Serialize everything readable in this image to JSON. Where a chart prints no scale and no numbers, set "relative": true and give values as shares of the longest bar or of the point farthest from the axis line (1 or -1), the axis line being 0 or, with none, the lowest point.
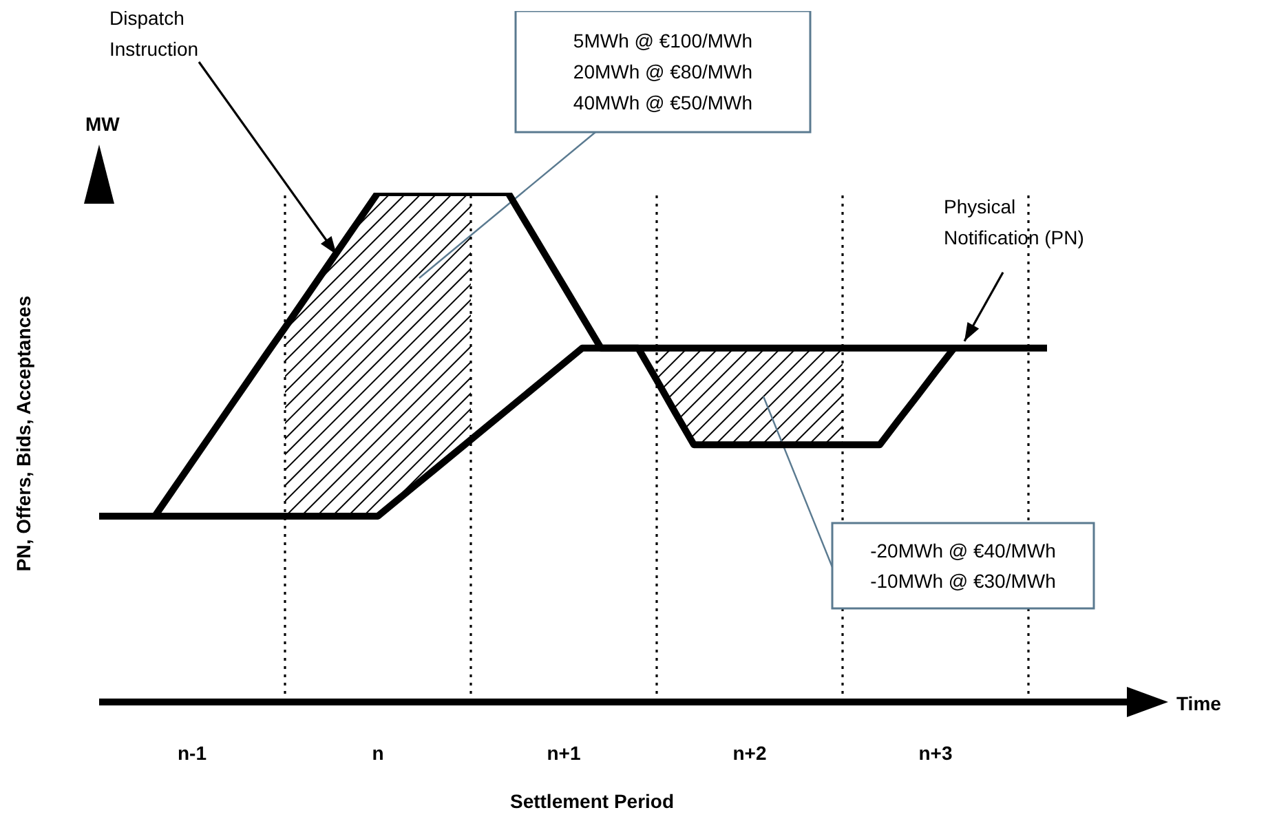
{
  "chart_data": {
    "type": "line",
    "relative": true,
    "xlabel": "Settlement Period",
    "ylabel": "PN, Offers, Bids, Acceptances",
    "categories": [
      null,
      null,
      null,
      null,
      null,
      "n-1",
      null,
      null,
      null,
      null,
      null,
      null,
      null,
      null,
      null,
      "n",
      null,
      null,
      null,
      null,
      null,
      null,
      null,
      null,
      null,
      "n+1",
      null,
      null,
      null,
      null,
      null,
      null,
      null,
      null,
      null,
      "n+2",
      null,
      null,
      null,
      null,
      null,
      null,
      null,
      null,
      null,
      "n+3",
      null,
      null,
      null,
      null,
      null,
      null
    ],
    "series": [
      {
        "name": "Physical Notification (PN)",
        "color": "#000000",
        "values": [
          0.365,
          0.365,
          0.365,
          0.365,
          0.365,
          0.365,
          0.365,
          0.365,
          0.365,
          0.365,
          0.365,
          0.365,
          0.365,
          0.365,
          0.365,
          0.365,
          0.395,
          0.425,
          0.455,
          0.485,
          0.515,
          0.545,
          0.575,
          0.605,
          0.635,
          0.665,
          0.695,
          0.695,
          0.695,
          0.695,
          0.695,
          0.695,
          0.695,
          0.695,
          0.695,
          0.695,
          0.695,
          0.695,
          0.695,
          0.695,
          0.695,
          0.695,
          0.695,
          0.695,
          0.695,
          0.695,
          0.695,
          0.695,
          0.695,
          0.695,
          0.695,
          0.695
        ]
      },
      {
        "name": "Dispatch Instruction",
        "color": "#000000",
        "values": [
          null,
          null,
          null,
          0.365,
          0.418,
          0.471,
          0.524,
          0.577,
          0.63,
          0.683,
          0.735,
          0.788,
          0.841,
          0.894,
          0.947,
          1,
          1,
          1,
          1,
          1,
          1,
          1,
          1,
          0.939,
          0.878,
          0.817,
          0.756,
          0.695,
          0.695,
          0.695,
          0.632,
          0.568,
          0.505,
          0.505,
          0.505,
          0.505,
          0.505,
          0.505,
          0.505,
          0.505,
          0.505,
          0.505,
          0.505,
          0.553,
          0.6,
          0.648,
          0.695,
          null,
          null,
          null,
          null,
          null
        ]
      }
    ],
    "grid": "x",
    "annotations": [
      "MW",
      "Time",
      "5MWh @ €100/MWh\n20MWh @ €80/MWh\n40MWh @ €50/MWh",
      "-20MWh @ €40/MWh\n-10MWh @ €30/MWh"
    ]
  }
}
